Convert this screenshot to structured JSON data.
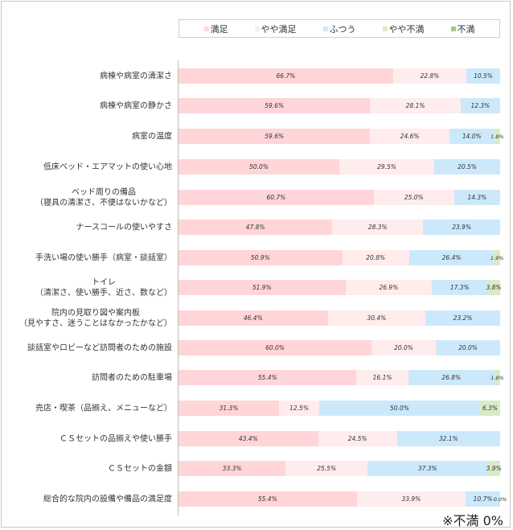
{
  "legend": {
    "items": [
      {
        "label": "満足",
        "color": "#ffd5d7"
      },
      {
        "label": "やや満足",
        "color": "#ffecec"
      },
      {
        "label": "ふつう",
        "color": "#cce9fb"
      },
      {
        "label": "やや不満",
        "color": "#d9ebc6"
      },
      {
        "label": "不満",
        "color": "#9ed07a"
      }
    ]
  },
  "note": "※不満 0%",
  "chart_data": {
    "type": "bar",
    "orientation": "horizontal",
    "stacked": true,
    "percent": true,
    "title": "",
    "xlabel": "",
    "ylabel": "",
    "xlim": [
      0,
      100
    ],
    "grid": false,
    "legend_position": "top",
    "series_names": [
      "満足",
      "やや満足",
      "ふつう",
      "やや不満",
      "不満"
    ],
    "categories": [
      "病棟や病室の清潔さ",
      "病棟や病室の静かさ",
      "病室の温度",
      "低床ベッド・エアマットの使い心地",
      "ベッド周りの備品\n（寝具の清潔さ、不便はないかなど）",
      "ナースコールの使いやすさ",
      "手洗い場の使い勝手（病室・談話室）",
      "トイレ\n（清潔さ、使い勝手、近さ、数など）",
      "院内の見取り図や案内板\n（見やすさ、迷うことはなかったかなど）",
      "談話室やロビーなど訪問者のための施設",
      "訪問者のための駐車場",
      "売店・喫茶（品揃え、メニューなど）",
      "ＣＳセットの品揃えや使い勝手",
      "ＣＳセットの金額",
      "総合的な院内の設備や備品の満足度"
    ],
    "series": [
      {
        "name": "満足",
        "values": [
          66.7,
          59.6,
          59.6,
          50.0,
          60.7,
          47.8,
          50.9,
          51.9,
          46.4,
          60.0,
          55.4,
          31.3,
          43.4,
          33.3,
          55.4
        ]
      },
      {
        "name": "やや満足",
        "values": [
          22.8,
          28.1,
          24.6,
          29.5,
          25.0,
          28.3,
          20.8,
          26.9,
          30.4,
          20.0,
          16.1,
          12.5,
          24.5,
          25.5,
          33.9
        ]
      },
      {
        "name": "ふつう",
        "values": [
          10.5,
          12.3,
          14.0,
          20.5,
          14.3,
          23.9,
          26.4,
          17.3,
          23.2,
          20.0,
          26.8,
          50.0,
          32.1,
          37.3,
          10.7
        ]
      },
      {
        "name": "やや不満",
        "values": [
          0,
          0,
          1.8,
          0,
          0,
          0,
          1.9,
          3.8,
          0,
          0,
          1.8,
          6.3,
          0,
          3.9,
          0.0
        ]
      },
      {
        "name": "不満",
        "values": [
          0,
          0,
          0,
          0,
          0,
          0,
          0,
          0,
          0,
          0,
          0,
          0,
          0,
          0,
          0
        ]
      }
    ],
    "labels": [
      [
        "66.7%",
        "22.8%",
        "10.5%",
        "",
        ""
      ],
      [
        "59.6%",
        "28.1%",
        "12.3%",
        "",
        ""
      ],
      [
        "59.6%",
        "24.6%",
        "14.0%",
        "1.8%",
        ""
      ],
      [
        "50.0%",
        "29.5%",
        "20.5%",
        "",
        ""
      ],
      [
        "60.7%",
        "25.0%",
        "14.3%",
        "",
        ""
      ],
      [
        "47.8%",
        "28.3%",
        "23.9%",
        "",
        ""
      ],
      [
        "50.9%",
        "20.8%",
        "26.4%",
        "1.9%",
        ""
      ],
      [
        "51.9%",
        "26.9%",
        "17.3%",
        "3.8%",
        ""
      ],
      [
        "46.4%",
        "30.4%",
        "23.2%",
        "",
        ""
      ],
      [
        "60.0%",
        "20.0%",
        "20.0%",
        "",
        ""
      ],
      [
        "55.4%",
        "16.1%",
        "26.8%",
        "1.8%",
        ""
      ],
      [
        "31.3%",
        "12.5%",
        "50.0%",
        "6.3%",
        ""
      ],
      [
        "43.4%",
        "24.5%",
        "32.1%",
        "",
        ""
      ],
      [
        "33.3%",
        "25.5%",
        "37.3%",
        "3.9%",
        ""
      ],
      [
        "55.4%",
        "33.9%",
        "10.7%",
        "0.0%",
        ""
      ]
    ],
    "annotations": [
      "※不満 0%"
    ]
  }
}
